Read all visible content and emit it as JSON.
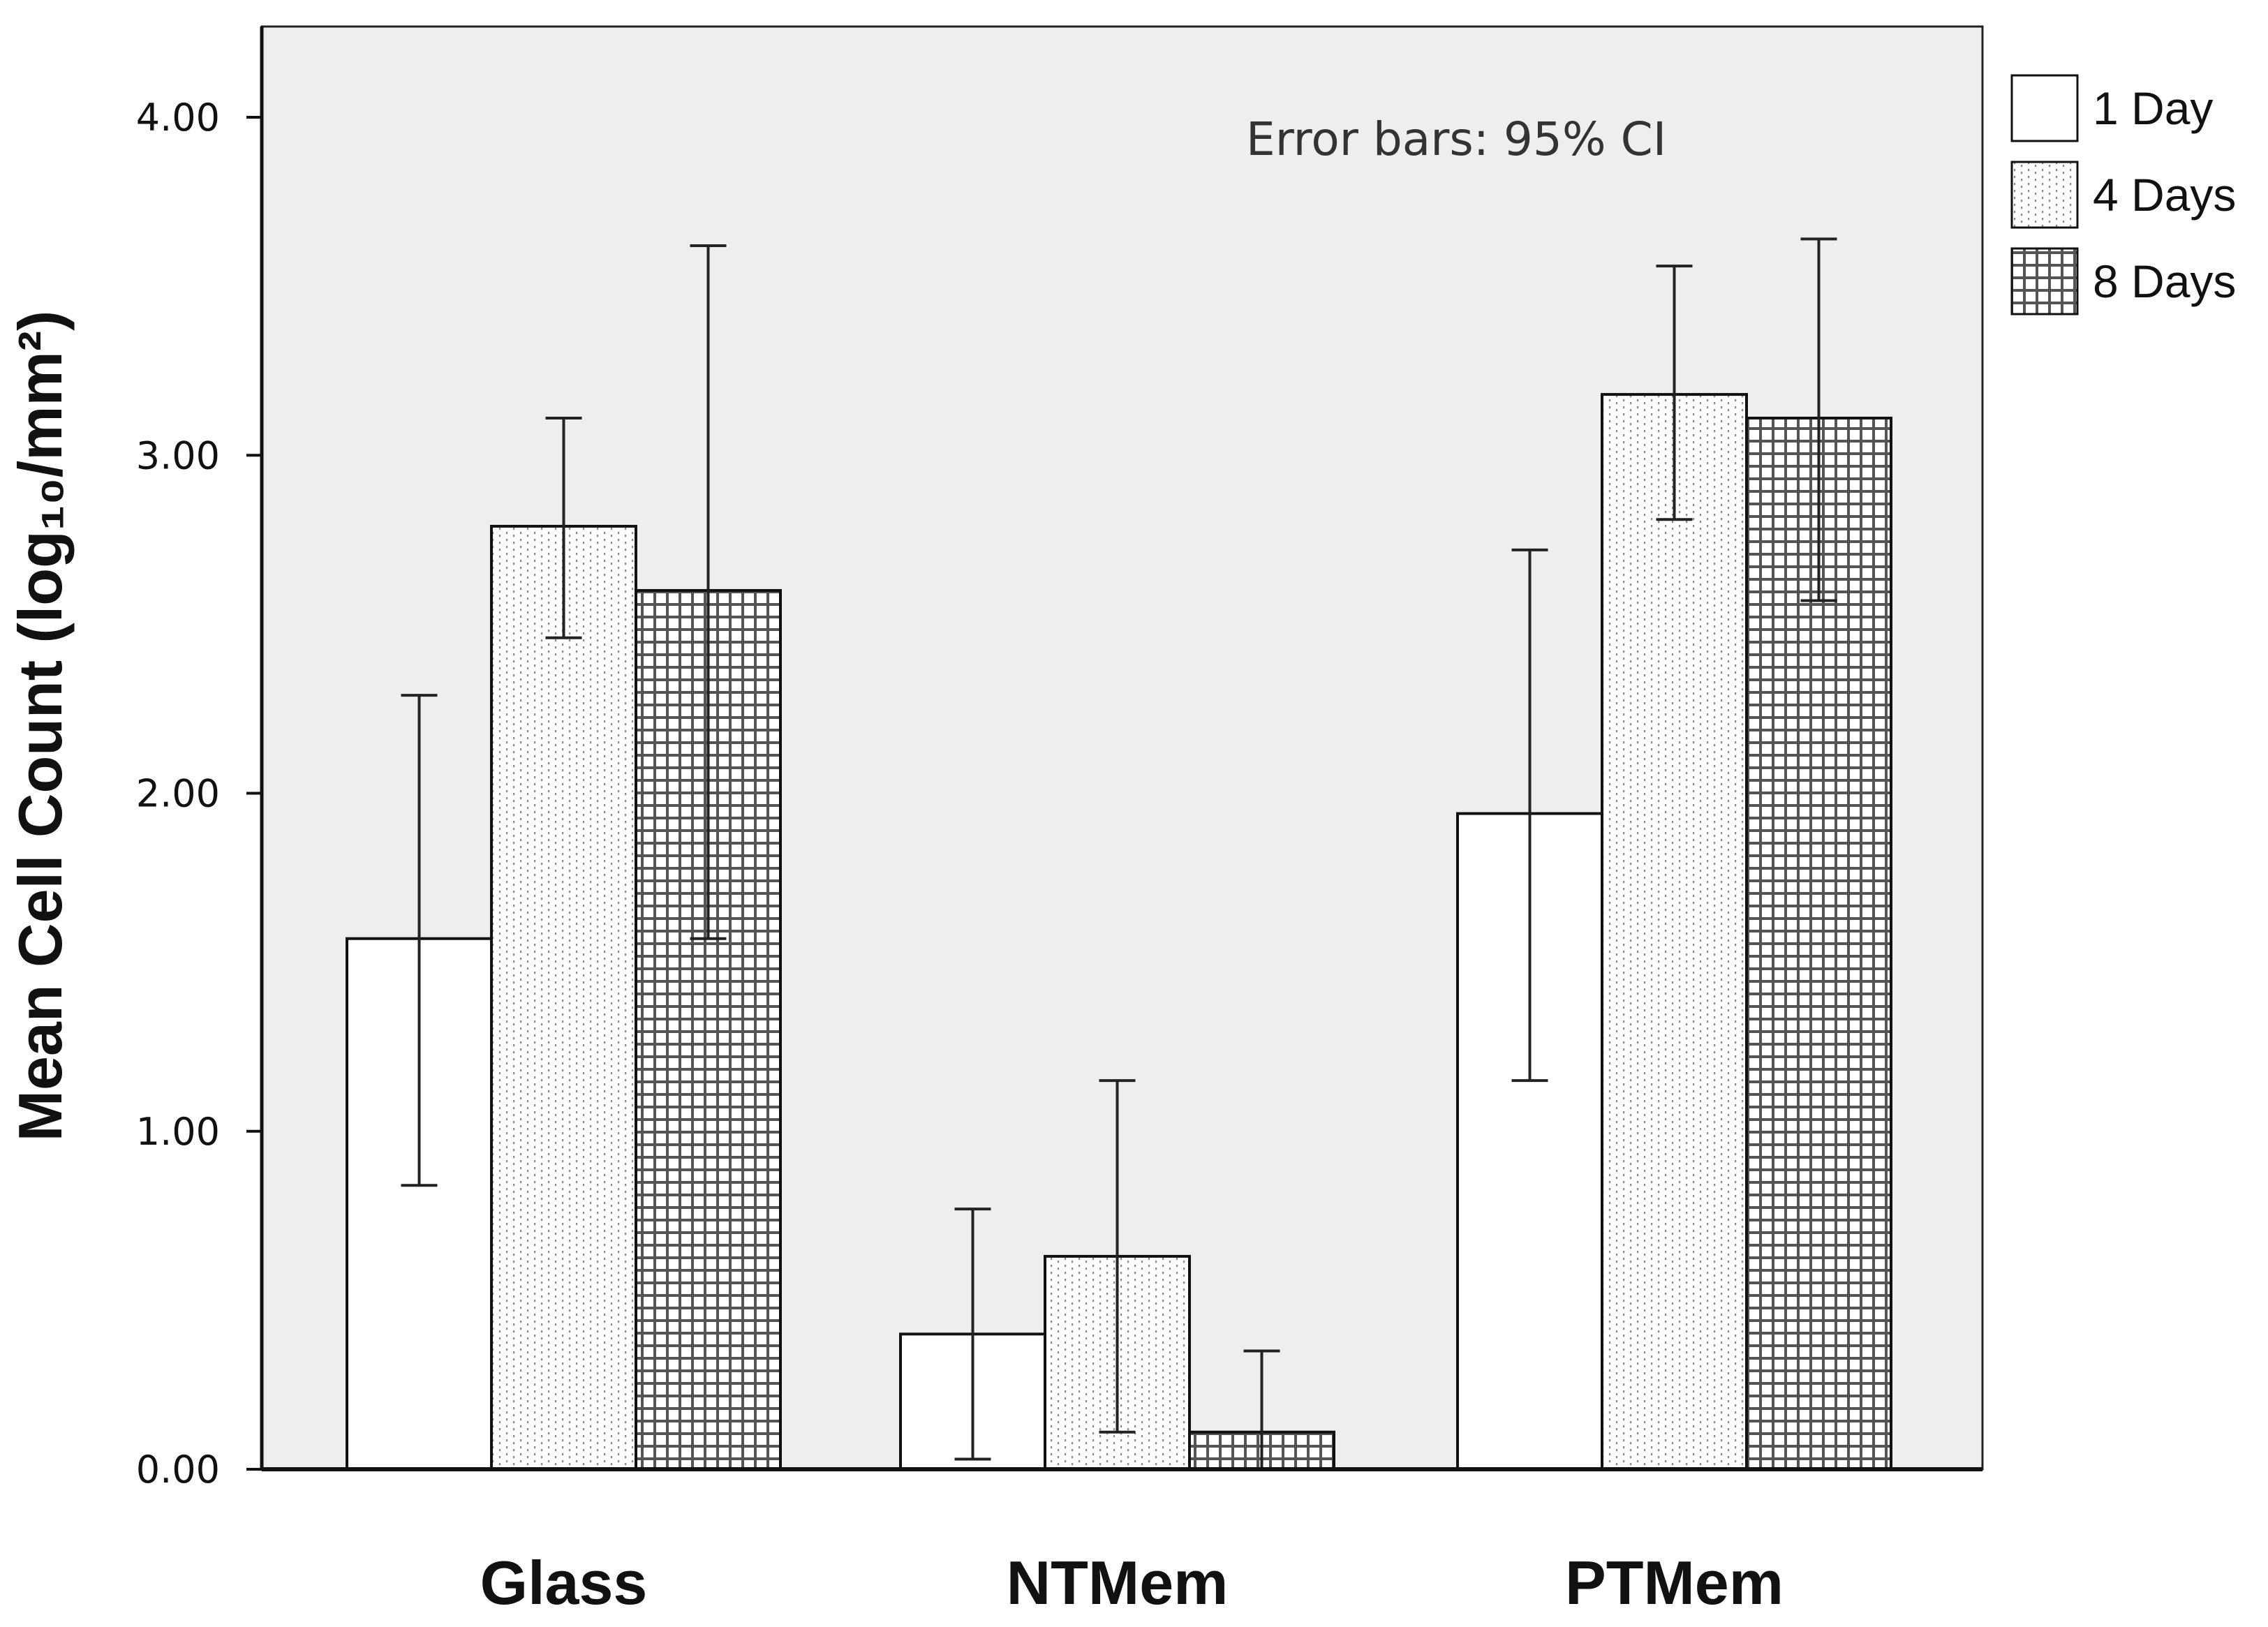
{
  "chart_data": {
    "type": "bar",
    "title": "",
    "xlabel": "",
    "ylabel": "Mean Cell Count (log₁₀/mm²)",
    "ylim": [
      0,
      4.2
    ],
    "yticks": [
      "0.00",
      "1.00",
      "2.00",
      "3.00",
      "4.00"
    ],
    "grid": false,
    "legend_position": "top-right, outside plot",
    "annotation": "Error bars: 95% CI",
    "categories": [
      "Glass",
      "NTMem",
      "PTMem"
    ],
    "series": [
      {
        "name": "1 Day",
        "pattern": "plain",
        "values": [
          1.57,
          0.4,
          1.94
        ],
        "ci_low": [
          0.84,
          0.03,
          1.15
        ],
        "ci_high": [
          2.29,
          0.77,
          2.72
        ]
      },
      {
        "name": "4 Days",
        "pattern": "dotted",
        "values": [
          2.79,
          0.63,
          3.18
        ],
        "ci_low": [
          2.46,
          0.11,
          2.81
        ],
        "ci_high": [
          3.11,
          1.15,
          3.56
        ]
      },
      {
        "name": "8 Days",
        "pattern": "grid",
        "values": [
          2.6,
          0.11,
          3.11
        ],
        "ci_low": [
          1.57,
          0.0,
          2.57
        ],
        "ci_high": [
          3.62,
          0.35,
          3.64
        ]
      }
    ],
    "colors": {
      "plot_bg": "#eeeeee",
      "bar_fill": "#ffffff",
      "stroke": "#111111",
      "dot": "#8a8a8a",
      "grid_line": "#555555"
    }
  }
}
